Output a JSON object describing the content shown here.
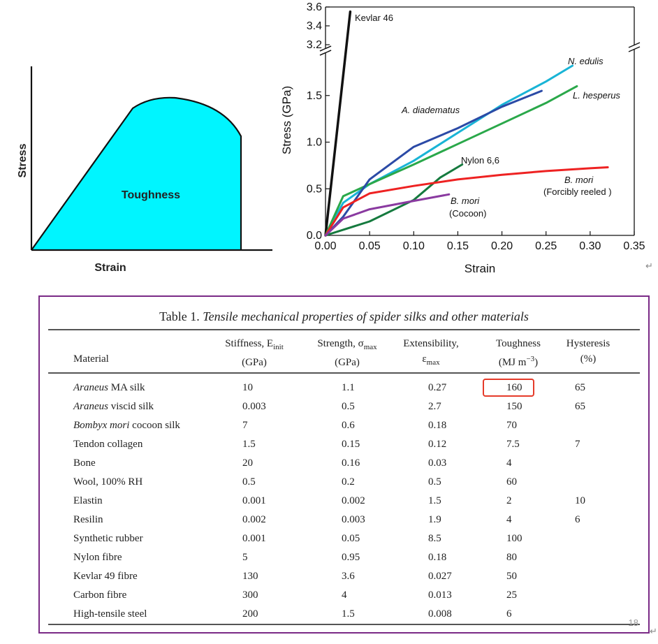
{
  "left_diagram": {
    "ylabel": "Stress",
    "xlabel": "Strain",
    "area_label": "Toughness",
    "fill_color": "#00f5ff"
  },
  "chart_data": [
    {
      "type": "line",
      "xlabel": "Strain",
      "ylabel": "Stress (GPa)",
      "xlim": [
        0.0,
        0.35
      ],
      "x_ticks": [
        "0.00",
        "0.05",
        "0.10",
        "0.15",
        "0.20",
        "0.25",
        "0.30",
        "0.35"
      ],
      "y_ticks_lower": [
        "0.0",
        "0.5",
        "1.0",
        "1.5"
      ],
      "y_ticks_upper": [
        "3.2",
        "3.4",
        "3.6"
      ],
      "y_axis_break": {
        "lower": [
          0.0,
          2.0
        ],
        "upper": [
          3.2,
          3.6
        ]
      },
      "series": [
        {
          "name": "Kevlar 46",
          "color": "#111111",
          "x": [
            0.0,
            0.028
          ],
          "y": [
            0.0,
            3.55
          ]
        },
        {
          "name": "N. edulis",
          "color": "#19b4d6",
          "x": [
            0.0,
            0.02,
            0.05,
            0.1,
            0.15,
            0.2,
            0.25,
            0.28
          ],
          "y": [
            0.0,
            0.35,
            0.55,
            0.8,
            1.1,
            1.4,
            1.65,
            1.82
          ]
        },
        {
          "name": "L. hesperus",
          "color": "#2aa84a",
          "x": [
            0.0,
            0.02,
            0.05,
            0.1,
            0.15,
            0.2,
            0.25,
            0.285
          ],
          "y": [
            0.0,
            0.42,
            0.55,
            0.76,
            0.98,
            1.2,
            1.42,
            1.6
          ]
        },
        {
          "name": "A. diadematus",
          "color": "#2b4aa6",
          "x": [
            0.0,
            0.02,
            0.05,
            0.1,
            0.15,
            0.2,
            0.245
          ],
          "y": [
            0.0,
            0.2,
            0.6,
            0.95,
            1.15,
            1.38,
            1.55
          ]
        },
        {
          "name": "Nylon 6,6",
          "color": "#157a3e",
          "x": [
            0.0,
            0.05,
            0.1,
            0.13,
            0.155
          ],
          "y": [
            0.0,
            0.15,
            0.38,
            0.62,
            0.76
          ]
        },
        {
          "name": "B. mori (Forcibly reeled )",
          "color": "#ee2222",
          "x": [
            0.0,
            0.02,
            0.05,
            0.1,
            0.15,
            0.2,
            0.25,
            0.3,
            0.32
          ],
          "y": [
            0.0,
            0.3,
            0.45,
            0.53,
            0.6,
            0.65,
            0.69,
            0.72,
            0.73
          ]
        },
        {
          "name": "B. mori (Cocoon)",
          "color": "#8a3aa0",
          "x": [
            0.0,
            0.02,
            0.05,
            0.1,
            0.14
          ],
          "y": [
            0.0,
            0.18,
            0.28,
            0.37,
            0.44
          ]
        }
      ],
      "annotations": {
        "kevlar": "Kevlar 46",
        "n_edulis": "N. edulis",
        "l_hesperus": "L. hesperus",
        "a_diadematus": "A. diadematus",
        "nylon": "Nylon 6,6",
        "b_mori_reeled_1": "B. mori",
        "b_mori_reeled_2": "(Forcibly reeled )",
        "b_mori_cocoon_1": "B. mori",
        "b_mori_cocoon_2": "(Cocoon)"
      }
    },
    {
      "type": "table",
      "title_prefix": "Table 1.",
      "title_italic": "Tensile mechanical properties of spider silks and other materials",
      "columns": [
        {
          "line1": "",
          "line2": "Material"
        },
        {
          "line1": "Stiffness, E",
          "sub1": "init",
          "line2": "(GPa)"
        },
        {
          "line1": "Strength, σ",
          "sub1": "max",
          "line2": "(GPa)"
        },
        {
          "line1": "Extensibility,",
          "line2": "ε",
          "sub2": "max"
        },
        {
          "line1": "Toughness",
          "line2": "(MJ m",
          "sup2": "−3",
          "line2_end": ")"
        },
        {
          "line1": "Hysteresis",
          "line2": "(%)"
        }
      ],
      "rows": [
        {
          "mat_i": "Araneus",
          "mat": " MA silk",
          "stiff": "10",
          "strength": "1.1",
          "ext": "0.27",
          "tough": "160",
          "hyst": "65"
        },
        {
          "mat_i": "Araneus",
          "mat": " viscid silk",
          "stiff": "0.003",
          "strength": "0.5",
          "ext": "2.7",
          "tough": "150",
          "hyst": "65"
        },
        {
          "mat_i": "Bombyx mori",
          "mat": " cocoon silk",
          "stiff": "7",
          "strength": "0.6",
          "ext": "0.18",
          "tough": "70",
          "hyst": ""
        },
        {
          "mat_i": "",
          "mat": "Tendon collagen",
          "stiff": "1.5",
          "strength": "0.15",
          "ext": "0.12",
          "tough": "7.5",
          "hyst": "7"
        },
        {
          "mat_i": "",
          "mat": "Bone",
          "stiff": "20",
          "strength": "0.16",
          "ext": "0.03",
          "tough": "4",
          "hyst": ""
        },
        {
          "mat_i": "",
          "mat": "Wool, 100% RH",
          "stiff": "0.5",
          "strength": "0.2",
          "ext": "0.5",
          "tough": "60",
          "hyst": ""
        },
        {
          "mat_i": "",
          "mat": "Elastin",
          "stiff": "0.001",
          "strength": "0.002",
          "ext": "1.5",
          "tough": "2",
          "hyst": "10"
        },
        {
          "mat_i": "",
          "mat": "Resilin",
          "stiff": "0.002",
          "strength": "0.003",
          "ext": "1.9",
          "tough": "4",
          "hyst": "6"
        },
        {
          "mat_i": "",
          "mat": "Synthetic rubber",
          "stiff": "0.001",
          "strength": "0.05",
          "ext": "8.5",
          "tough": "100",
          "hyst": ""
        },
        {
          "mat_i": "",
          "mat": "Nylon fibre",
          "stiff": "5",
          "strength": "0.95",
          "ext": "0.18",
          "tough": "80",
          "hyst": ""
        },
        {
          "mat_i": "",
          "mat": "Kevlar 49 fibre",
          "stiff": "130",
          "strength": "3.6",
          "ext": "0.027",
          "tough": "50",
          "hyst": ""
        },
        {
          "mat_i": "",
          "mat": "Carbon fibre",
          "stiff": "300",
          "strength": "4",
          "ext": "0.013",
          "tough": "25",
          "hyst": ""
        },
        {
          "mat_i": "",
          "mat": "High-tensile steel",
          "stiff": "200",
          "strength": "1.5",
          "ext": "0.008",
          "tough": "6",
          "hyst": ""
        }
      ],
      "highlight_color": "#e53b2a",
      "frame_color": "#7a2a86"
    }
  ],
  "page_number": "18",
  "paragraph_mark_1": "↵",
  "paragraph_mark_2": "↵"
}
